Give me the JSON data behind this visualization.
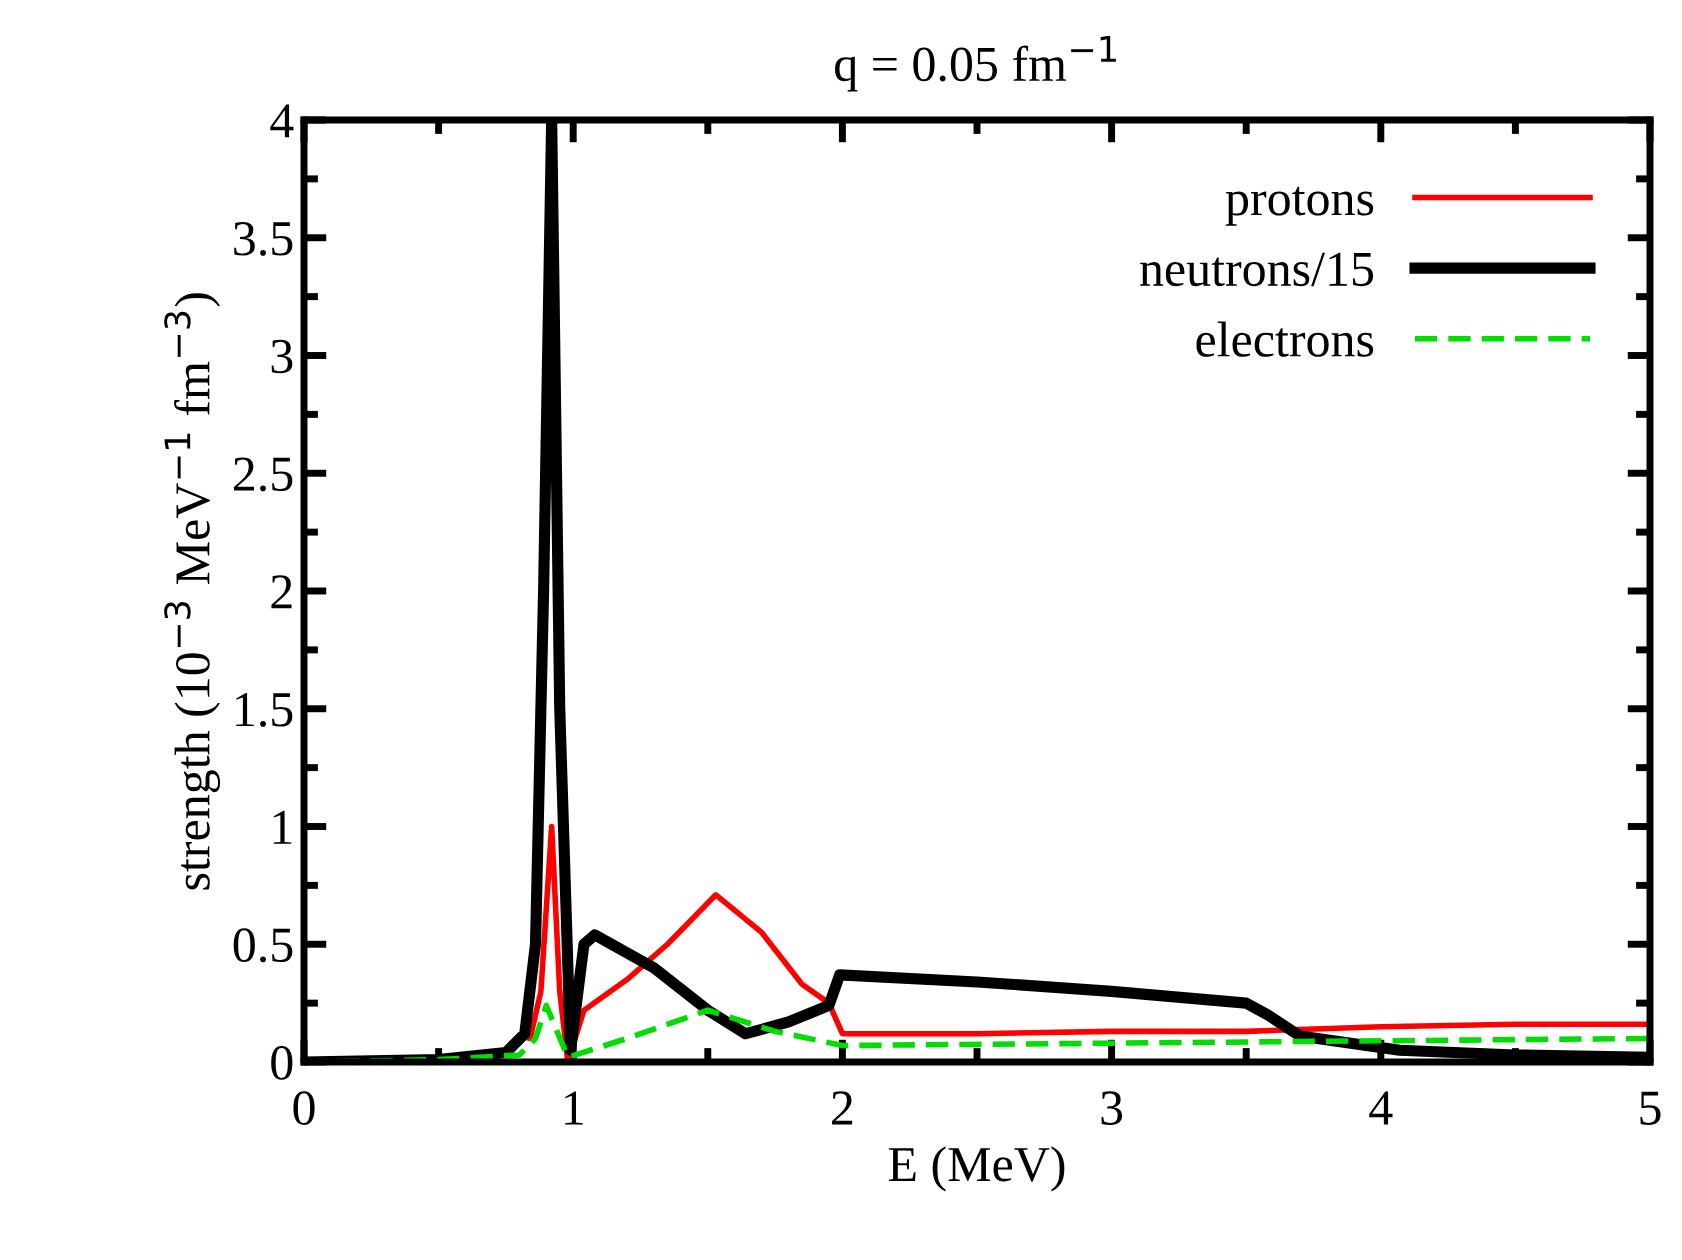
{
  "chart_data": {
    "type": "line",
    "title": "q = 0.05 fm$^{−1}$",
    "xlabel": "E (MeV)",
    "ylabel": "strength (10$^{−3}$ MeV$^{−1}$ fm$^{−3}$)",
    "xlim": [
      0,
      5
    ],
    "ylim": [
      0,
      4
    ],
    "xticks": [
      0,
      1,
      2,
      3,
      4,
      5
    ],
    "yticks": [
      0,
      0.5,
      1,
      1.5,
      2,
      2.5,
      3,
      3.5,
      4
    ],
    "grid": false,
    "legend": "top right",
    "marker": "none",
    "series": [
      {
        "name": "protons",
        "color": "#ff0000",
        "line_style": "solid",
        "x": [
          0.84,
          0.88,
          0.92,
          0.95,
          0.98,
          1.04,
          1.2,
          1.35,
          1.53,
          1.7,
          1.85,
          1.95,
          2.0,
          2.5,
          3.0,
          3.5,
          4.0,
          4.5,
          5.0
        ],
        "values": [
          0.1,
          0.3,
          1.0,
          0.3,
          0.0,
          0.22,
          0.35,
          0.5,
          0.71,
          0.55,
          0.33,
          0.25,
          0.12,
          0.12,
          0.13,
          0.13,
          0.15,
          0.16,
          0.16
        ]
      },
      {
        "name": "neutrons/15",
        "color": "#000000",
        "line_style": "solid",
        "x": [
          0,
          0.5,
          0.75,
          0.82,
          0.86,
          0.89,
          0.92,
          0.95,
          0.99,
          1.04,
          1.08,
          1.3,
          1.5,
          1.64,
          1.8,
          1.95,
          1.99,
          2.5,
          3.0,
          3.5,
          3.58,
          3.7,
          4.07,
          4.5,
          5.0
        ],
        "values": [
          0,
          0.01,
          0.04,
          0.12,
          0.5,
          2.0,
          4.0,
          1.5,
          0.05,
          0.5,
          0.54,
          0.4,
          0.22,
          0.12,
          0.17,
          0.24,
          0.37,
          0.34,
          0.3,
          0.25,
          0.2,
          0.11,
          0.05,
          0.03,
          0.02
        ]
      },
      {
        "name": "electrons",
        "color": "#00dd00",
        "line_style": "dashed",
        "x": [
          0,
          0.5,
          0.8,
          0.86,
          0.9,
          0.98,
          1.2,
          1.5,
          1.75,
          2.0,
          3.0,
          4.0,
          5.0
        ],
        "values": [
          0,
          0.01,
          0.03,
          0.1,
          0.24,
          0.02,
          0.1,
          0.22,
          0.13,
          0.07,
          0.08,
          0.09,
          0.1
        ]
      }
    ]
  }
}
